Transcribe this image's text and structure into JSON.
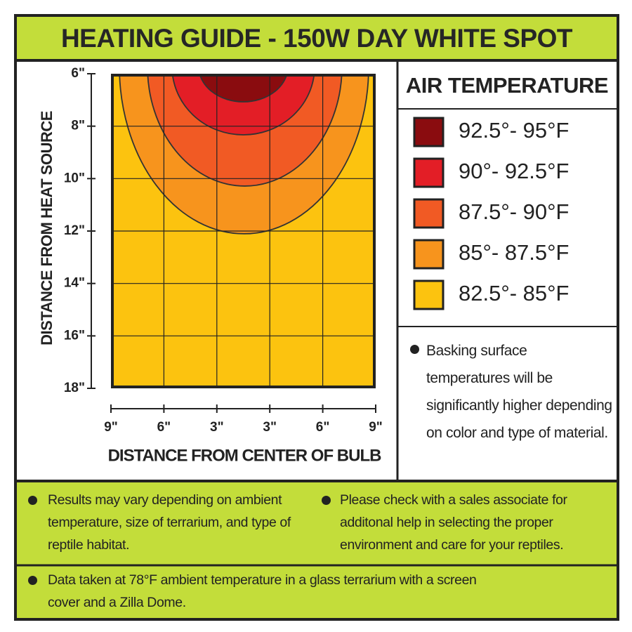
{
  "header": {
    "title": "HEATING GUIDE - 150W DAY WHITE SPOT"
  },
  "chart": {
    "y_axis_label": "DISTANCE FROM HEAT SOURCE",
    "y_ticks": [
      "6\"",
      "8\"",
      "10\"",
      "12\"",
      "14\"",
      "16\"",
      "18\""
    ],
    "x_axis_label": "DISTANCE FROM CENTER OF BULB",
    "x_ticks": [
      "9\"",
      "6\"",
      "3\"",
      "3\"",
      "6\"",
      "9\""
    ]
  },
  "legend": {
    "title": "AIR TEMPERATURE",
    "items": [
      {
        "label": "92.5°- 95°F",
        "color": "#8a0c0f"
      },
      {
        "label": "90°- 92.5°F",
        "color": "#e31e26"
      },
      {
        "label": "87.5°- 90°F",
        "color": "#f15a24"
      },
      {
        "label": "85°- 87.5°F",
        "color": "#f7941d"
      },
      {
        "label": "82.5°- 85°F",
        "color": "#fcc30f"
      }
    ]
  },
  "side_note": "Basking surface temperatures will be significantly higher depending on color and type of material.",
  "footer": {
    "notes": [
      "Results may vary depending on ambient temperature, size of terrarium, and type of reptile habitat.",
      "Please check with a sales associate for additonal help in selecting the proper environment and care for your reptiles.",
      "Data taken at 78°F ambient temperature in a glass terrarium with a screen cover and a Zilla Dome."
    ]
  }
}
